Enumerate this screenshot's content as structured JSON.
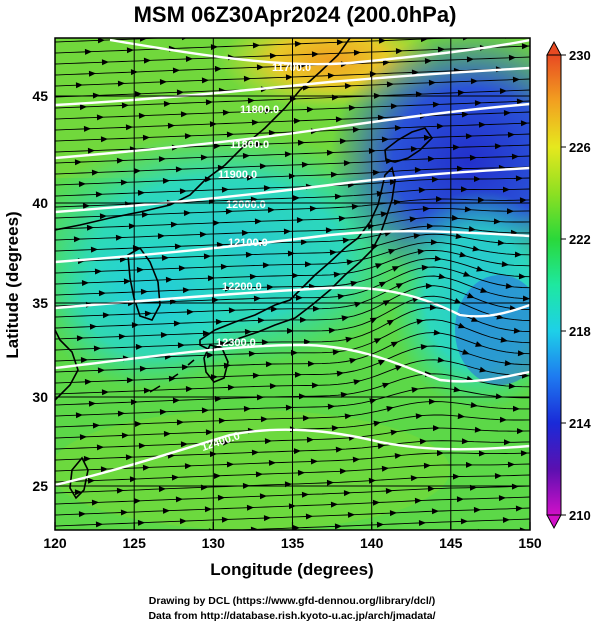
{
  "title": "MSM 06Z30Apr2024 (200.0hPa)",
  "x_axis": {
    "label": "Longitude (degrees)",
    "ticks": [
      "120",
      "125",
      "130",
      "135",
      "140",
      "145",
      "150"
    ]
  },
  "y_axis": {
    "label": "Latitude  (degrees)",
    "ticks": [
      "25",
      "30",
      "35",
      "40",
      "45"
    ]
  },
  "colorbar": {
    "ticks": [
      "210",
      "214",
      "218",
      "222",
      "226",
      "230"
    ],
    "min": 210,
    "max": 230
  },
  "contours": {
    "color": "#ffffff",
    "labels": [
      "11700.0",
      "11800.0",
      "11900.0",
      "12000.0",
      "12100.0",
      "12200.0",
      "12300.0",
      "12400.0"
    ]
  },
  "footer": {
    "line1": "Drawing by DCL (https://www.gfd-dennou.org/library/dcl/)",
    "line2": "Data from http://database.rish.kyoto-u.ac.jp/arch/jmadata/"
  }
}
